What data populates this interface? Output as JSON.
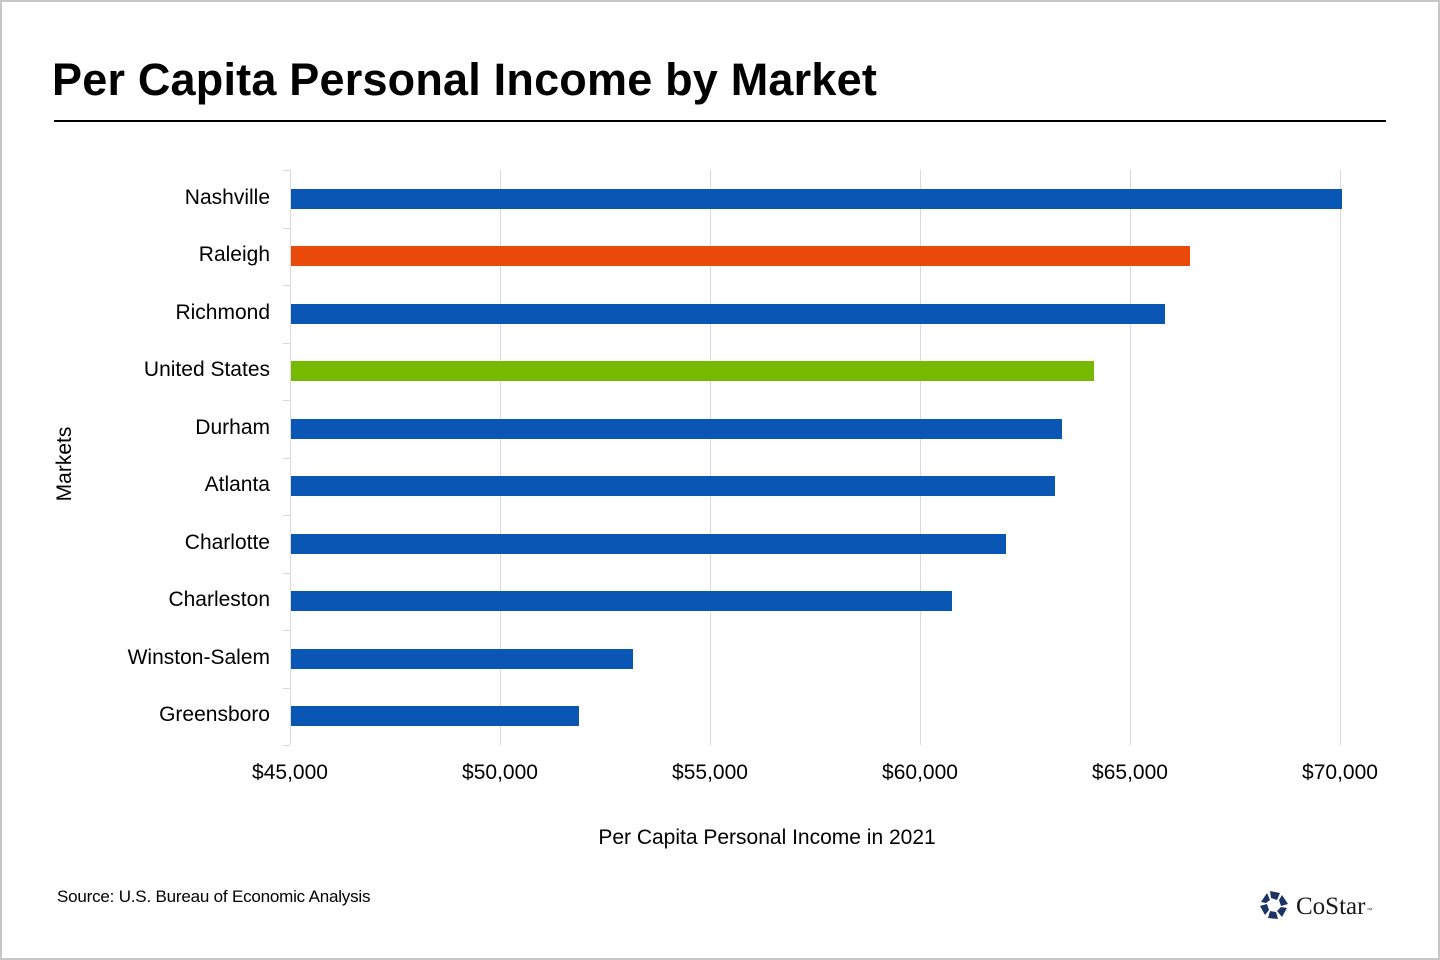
{
  "page": {
    "title": "Per Capita Personal Income by Market",
    "source": "Source: U.S. Bureau of Economic Analysis",
    "logo": {
      "icon": "costar-star-icon",
      "text": "CoStar",
      "trademark": "™",
      "color": "#1c3366"
    }
  },
  "colors": {
    "market": "#0A56B4",
    "highlight": "#E94A0A",
    "national": "#76B900",
    "gridline": "#d9d9d9",
    "border": "#c6c6c6"
  },
  "chart_data": {
    "type": "bar",
    "orientation": "horizontal",
    "title": "Per Capita Personal Income by Market",
    "xlabel": "Per Capita Personal Income in 2021",
    "ylabel": "Markets",
    "xlim": [
      45000,
      70000
    ],
    "x_ticks": [
      45000,
      50000,
      55000,
      60000,
      65000,
      70000
    ],
    "x_tick_labels": [
      "$45,000",
      "$50,000",
      "$55,000",
      "$60,000",
      "$65,000",
      "$70,000"
    ],
    "grid": "vertical",
    "legend": "none",
    "categories": [
      "Nashville",
      "Raleigh",
      "Richmond",
      "United States",
      "Durham",
      "Atlanta",
      "Charlotte",
      "Charleston",
      "Winston-Salem",
      "Greensboro"
    ],
    "values": [
      70040,
      66430,
      65830,
      64140,
      63380,
      63210,
      62050,
      60760,
      53170,
      51880
    ],
    "bar_colors": [
      "#0A56B4",
      "#E94A0A",
      "#0A56B4",
      "#76B900",
      "#0A56B4",
      "#0A56B4",
      "#0A56B4",
      "#0A56B4",
      "#0A56B4",
      "#0A56B4"
    ],
    "source": "Source: U.S. Bureau of Economic Analysis"
  }
}
